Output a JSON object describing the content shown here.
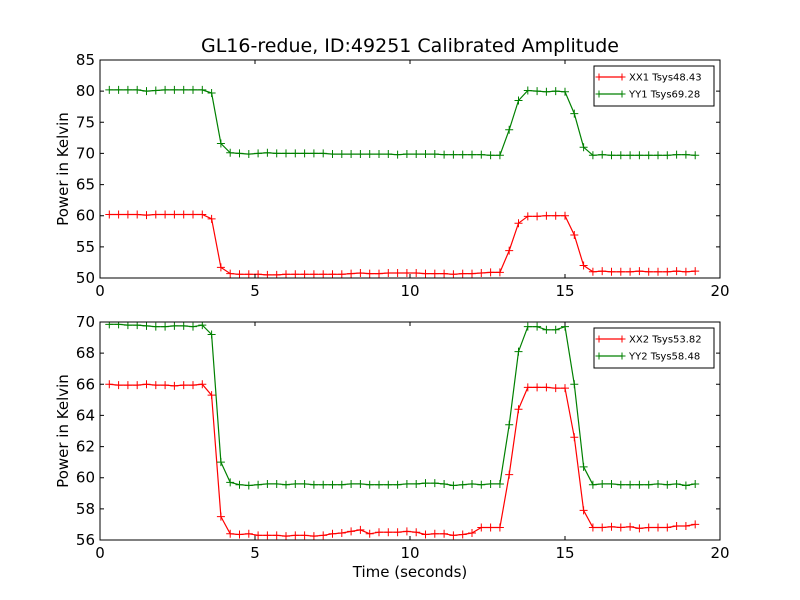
{
  "figure": {
    "title": "GL16-redue, ID:49251 Calibrated Amplitude",
    "xlabel": "Time (seconds)"
  },
  "chart_data": [
    {
      "type": "line",
      "title": "GL16-redue, ID:49251 Calibrated Amplitude",
      "xlabel": "",
      "ylabel": "Power in Kelvin",
      "xlim": [
        0,
        20
      ],
      "ylim": [
        50,
        85
      ],
      "xticks": [
        0,
        5,
        10,
        15,
        20
      ],
      "yticks": [
        50,
        55,
        60,
        65,
        70,
        75,
        80,
        85
      ],
      "grid": false,
      "legend_position": "top-right",
      "x": [
        0.3,
        0.6,
        0.9,
        1.2,
        1.5,
        1.8,
        2.1,
        2.4,
        2.7,
        3.0,
        3.3,
        3.6,
        3.9,
        4.2,
        4.5,
        4.8,
        5.1,
        5.4,
        5.7,
        6.0,
        6.3,
        6.6,
        6.9,
        7.2,
        7.5,
        7.8,
        8.1,
        8.4,
        8.7,
        9.0,
        9.3,
        9.6,
        9.9,
        10.2,
        10.5,
        10.8,
        11.1,
        11.4,
        11.7,
        12.0,
        12.3,
        12.6,
        12.9,
        13.2,
        13.5,
        13.8,
        14.1,
        14.4,
        14.7,
        15.0,
        15.3,
        15.6,
        15.9,
        16.2,
        16.5,
        16.8,
        17.1,
        17.4,
        17.7,
        18.0,
        18.3,
        18.6,
        18.9,
        19.2
      ],
      "series": [
        {
          "name": "XX1 Tsys48.43",
          "color": "#ff0000",
          "values": [
            60.2,
            60.2,
            60.2,
            60.2,
            60.1,
            60.2,
            60.2,
            60.2,
            60.2,
            60.2,
            60.2,
            59.5,
            51.7,
            50.7,
            50.6,
            50.6,
            50.6,
            50.5,
            50.5,
            50.6,
            50.6,
            50.6,
            50.6,
            50.6,
            50.6,
            50.6,
            50.7,
            50.8,
            50.7,
            50.7,
            50.8,
            50.8,
            50.8,
            50.8,
            50.7,
            50.7,
            50.7,
            50.6,
            50.7,
            50.7,
            50.8,
            50.9,
            50.9,
            54.4,
            58.8,
            59.9,
            59.9,
            60.0,
            60.0,
            60.0,
            56.9,
            52.0,
            51.0,
            51.1,
            51.0,
            51.0,
            51.0,
            51.1,
            51.0,
            51.0,
            51.0,
            51.1,
            51.0,
            51.1
          ]
        },
        {
          "name": "YY1 Tsys69.28",
          "color": "#008000",
          "values": [
            80.2,
            80.2,
            80.2,
            80.2,
            80.0,
            80.1,
            80.2,
            80.2,
            80.2,
            80.2,
            80.2,
            79.7,
            71.6,
            70.1,
            70.0,
            69.9,
            70.0,
            70.1,
            70.0,
            70.0,
            70.0,
            70.0,
            70.0,
            70.0,
            69.9,
            69.9,
            69.9,
            69.9,
            69.9,
            69.9,
            69.9,
            69.8,
            69.9,
            69.9,
            69.9,
            69.9,
            69.8,
            69.8,
            69.8,
            69.8,
            69.8,
            69.7,
            69.7,
            73.8,
            78.5,
            80.1,
            80.0,
            79.9,
            80.0,
            79.9,
            76.4,
            71.0,
            69.7,
            69.8,
            69.7,
            69.7,
            69.7,
            69.7,
            69.7,
            69.7,
            69.7,
            69.8,
            69.8,
            69.7
          ]
        }
      ]
    },
    {
      "type": "line",
      "title": "",
      "xlabel": "Time (seconds)",
      "ylabel": "Power in Kelvin",
      "xlim": [
        0,
        20
      ],
      "ylim": [
        56,
        70
      ],
      "xticks": [
        0,
        5,
        10,
        15,
        20
      ],
      "yticks": [
        56,
        58,
        60,
        62,
        64,
        66,
        68,
        70
      ],
      "grid": false,
      "legend_position": "top-right",
      "x": [
        0.3,
        0.6,
        0.9,
        1.2,
        1.5,
        1.8,
        2.1,
        2.4,
        2.7,
        3.0,
        3.3,
        3.6,
        3.9,
        4.2,
        4.5,
        4.8,
        5.1,
        5.4,
        5.7,
        6.0,
        6.3,
        6.6,
        6.9,
        7.2,
        7.5,
        7.8,
        8.1,
        8.4,
        8.7,
        9.0,
        9.3,
        9.6,
        9.9,
        10.2,
        10.5,
        10.8,
        11.1,
        11.4,
        11.7,
        12.0,
        12.3,
        12.6,
        12.9,
        13.2,
        13.5,
        13.8,
        14.1,
        14.4,
        14.7,
        15.0,
        15.3,
        15.6,
        15.9,
        16.2,
        16.5,
        16.8,
        17.1,
        17.4,
        17.7,
        18.0,
        18.3,
        18.6,
        18.9,
        19.2
      ],
      "series": [
        {
          "name": "XX2 Tsys53.82",
          "color": "#ff0000",
          "values": [
            66.0,
            65.95,
            65.95,
            65.95,
            66.0,
            65.95,
            65.95,
            65.9,
            65.95,
            65.95,
            66.0,
            65.3,
            57.5,
            56.4,
            56.35,
            56.4,
            56.3,
            56.3,
            56.3,
            56.25,
            56.3,
            56.3,
            56.25,
            56.3,
            56.4,
            56.45,
            56.55,
            56.65,
            56.4,
            56.5,
            56.5,
            56.5,
            56.55,
            56.5,
            56.35,
            56.4,
            56.4,
            56.3,
            56.35,
            56.45,
            56.8,
            56.8,
            56.8,
            60.2,
            64.4,
            65.8,
            65.8,
            65.8,
            65.75,
            65.75,
            62.6,
            57.9,
            56.8,
            56.8,
            56.85,
            56.8,
            56.85,
            56.75,
            56.8,
            56.8,
            56.8,
            56.9,
            56.9,
            57.0
          ]
        },
        {
          "name": "YY2 Tsys58.48",
          "color": "#008000",
          "values": [
            69.85,
            69.85,
            69.8,
            69.8,
            69.75,
            69.7,
            69.7,
            69.75,
            69.75,
            69.7,
            69.8,
            69.2,
            61.0,
            59.7,
            59.55,
            59.5,
            59.55,
            59.6,
            59.6,
            59.55,
            59.6,
            59.6,
            59.55,
            59.55,
            59.55,
            59.55,
            59.6,
            59.6,
            59.55,
            59.55,
            59.55,
            59.55,
            59.6,
            59.6,
            59.65,
            59.65,
            59.6,
            59.5,
            59.55,
            59.6,
            59.55,
            59.6,
            59.6,
            63.4,
            68.1,
            69.7,
            69.7,
            69.5,
            69.5,
            69.7,
            66.0,
            60.7,
            59.55,
            59.6,
            59.6,
            59.55,
            59.55,
            59.55,
            59.55,
            59.6,
            59.55,
            59.6,
            59.5,
            59.6
          ]
        }
      ]
    }
  ]
}
